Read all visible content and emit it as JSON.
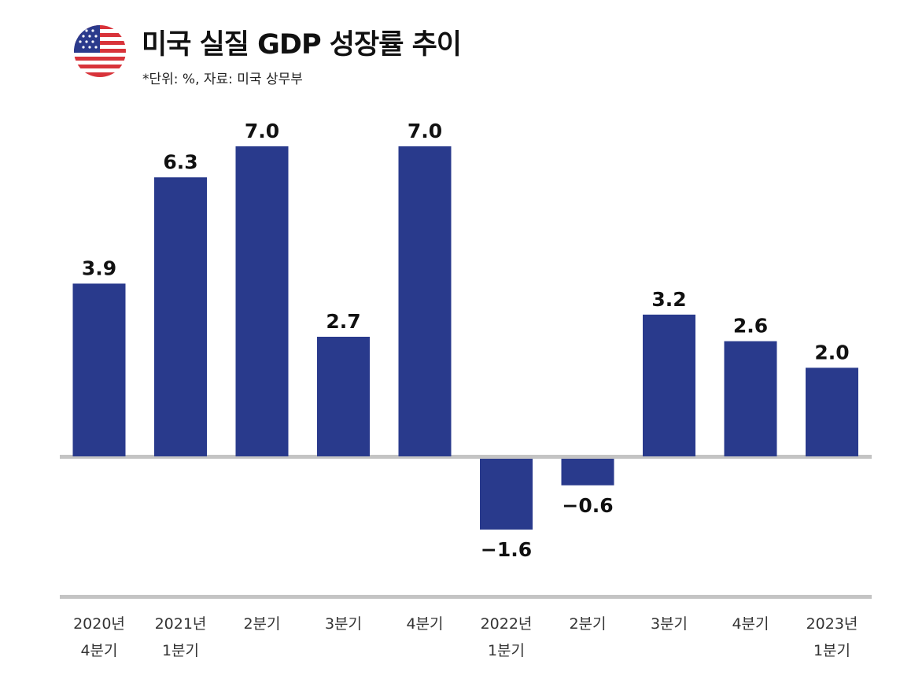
{
  "header": {
    "title": "미국 실질 GDP 성장률 추이",
    "subtitle": "*단위: %, 자료: 미국 상무부"
  },
  "colors": {
    "bar": "#293a8c",
    "axis": "#c4c4c4",
    "flag_red": "#d8333a",
    "flag_blue": "#2b3a8c"
  },
  "chart_data": {
    "type": "bar",
    "title": "미국 실질 GDP 성장률 추이",
    "unit": "%",
    "categories": [
      [
        "2020년",
        "4분기"
      ],
      [
        "2021년",
        "1분기"
      ],
      [
        "2분기"
      ],
      [
        "3분기"
      ],
      [
        "4분기"
      ],
      [
        "2022년",
        "1분기"
      ],
      [
        "2분기"
      ],
      [
        "3분기"
      ],
      [
        "4분기"
      ],
      [
        "2023년",
        "1분기"
      ]
    ],
    "values": [
      3.9,
      6.3,
      7.0,
      2.7,
      7.0,
      -1.6,
      -0.6,
      3.2,
      2.6,
      2.0
    ],
    "labels": [
      "3.9",
      "6.3",
      "7.0",
      "2.7",
      "7.0",
      "−1.6",
      "−0.6",
      "3.2",
      "2.6",
      "2.0"
    ],
    "ylim": [
      -3,
      7
    ],
    "grid": false,
    "legend": false
  }
}
